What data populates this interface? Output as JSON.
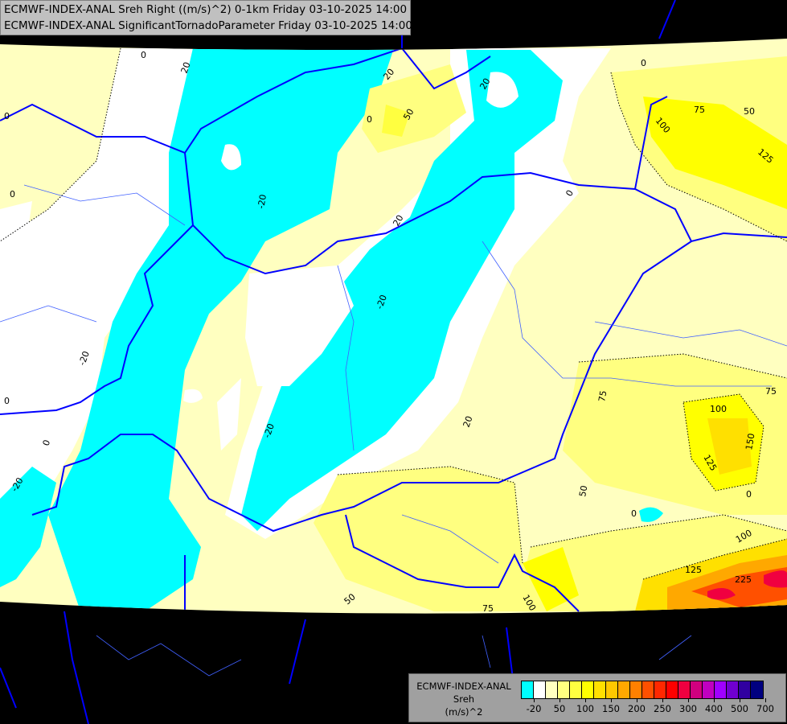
{
  "header": {
    "line1": "ECMWF-INDEX-ANAL Sreh Right ((m/s)^2) 0-1km Friday 03-10-2025 14:00",
    "line2": "ECMWF-INDEX-ANAL SignificantTornadoParameter Friday 03-10-2025 14:00"
  },
  "legend": {
    "model": "ECMWF-INDEX-ANAL",
    "variable": "Sreh",
    "unit": "(m/s)^2",
    "colors": [
      "#00ffff",
      "#ffffff",
      "#ffffc0",
      "#ffff80",
      "#ffff40",
      "#ffff00",
      "#ffe000",
      "#ffc800",
      "#ffa800",
      "#ff8000",
      "#ff5000",
      "#ff2800",
      "#ff0000",
      "#f00040",
      "#d0007f",
      "#c000c0",
      "#a000ff",
      "#7000d0",
      "#3000a0",
      "#000080"
    ],
    "tick_labels": [
      "-20",
      "50",
      "100",
      "150",
      "200",
      "250",
      "300",
      "400",
      "500",
      "700"
    ]
  },
  "contour_labels": [
    "0",
    "20",
    "-20",
    "20",
    "0",
    "50",
    "20",
    "0",
    "75",
    "50",
    "125",
    "100",
    "0",
    "0",
    "-20",
    "20",
    "0",
    "-20",
    "-20",
    "0",
    "0",
    "20",
    "0",
    "-20",
    "75",
    "75",
    "100",
    "150",
    "125",
    "0",
    "50",
    "0",
    "100",
    "125",
    "225",
    "100",
    "75",
    "50"
  ]
}
